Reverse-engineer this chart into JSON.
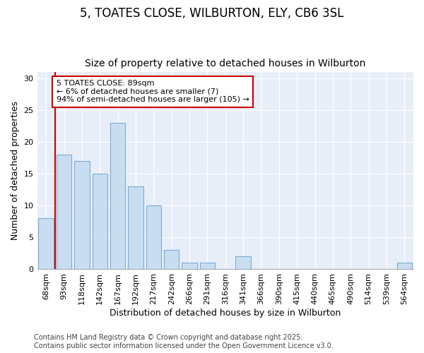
{
  "title_line1": "5, TOATES CLOSE, WILBURTON, ELY, CB6 3SL",
  "title_line2": "Size of property relative to detached houses in Wilburton",
  "xlabel": "Distribution of detached houses by size in Wilburton",
  "ylabel": "Number of detached properties",
  "categories": [
    "68sqm",
    "93sqm",
    "118sqm",
    "142sqm",
    "167sqm",
    "192sqm",
    "217sqm",
    "242sqm",
    "266sqm",
    "291sqm",
    "316sqm",
    "341sqm",
    "366sqm",
    "390sqm",
    "415sqm",
    "440sqm",
    "465sqm",
    "490sqm",
    "514sqm",
    "539sqm",
    "564sqm"
  ],
  "values": [
    8,
    18,
    17,
    15,
    23,
    13,
    10,
    3,
    1,
    1,
    0,
    2,
    0,
    0,
    0,
    0,
    0,
    0,
    0,
    0,
    1
  ],
  "bar_color": "#c8ddf0",
  "bar_edge_color": "#7aadd4",
  "highlight_color": "#cc0000",
  "annotation_text": "5 TOATES CLOSE: 89sqm\n← 6% of detached houses are smaller (7)\n94% of semi-detached houses are larger (105) →",
  "annotation_box_color": "#ffffff",
  "annotation_box_edge_color": "#cc0000",
  "ylim": [
    0,
    31
  ],
  "yticks": [
    0,
    5,
    10,
    15,
    20,
    25,
    30
  ],
  "footer_line1": "Contains HM Land Registry data © Crown copyright and database right 2025.",
  "footer_line2": "Contains public sector information licensed under the Open Government Licence v3.0.",
  "bg_color": "#ffffff",
  "plot_bg_color": "#e8eef8",
  "grid_color": "#ffffff",
  "title_fontsize": 12,
  "subtitle_fontsize": 10,
  "axis_label_fontsize": 9,
  "tick_fontsize": 8,
  "annotation_fontsize": 8,
  "footer_fontsize": 7
}
